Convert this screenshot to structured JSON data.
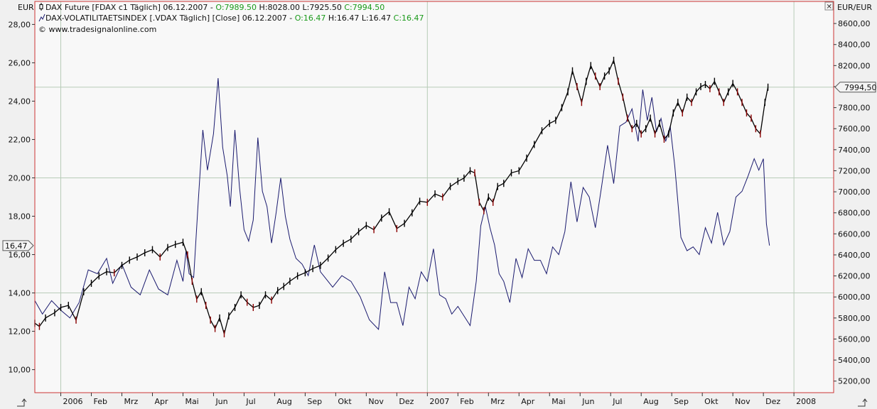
{
  "header": {
    "left_currency": "EUR",
    "right_currency": "EUR/EUR",
    "close_glyph": "✕"
  },
  "legend": {
    "line1": {
      "icon": "candlestick-icon",
      "name": "DAX Future [FDAX c1  Täglich] 06.12.2007 - ",
      "o_label": "O:",
      "o_value": "7989.50",
      "h_text": " H:8028.00 L:7925.50 ",
      "c_label": "C:",
      "c_value": "7994.50"
    },
    "line2": {
      "icon": "line-chart-icon",
      "name": "DAX-VOLATILITAETSINDEX [.VDAX  Täglich] [Close] 06.12.2007 - ",
      "o_label": "O:",
      "o_value": "16.47",
      "h_text": " H:16.47 L:16.47 ",
      "c_label": "C:",
      "c_value": "16.47"
    },
    "copyright": "© www.tradesignalonline.com"
  },
  "chart_data": {
    "type": "line",
    "x_tick_labels": [
      "2006",
      "Feb",
      "Mrz",
      "Apr",
      "Mai",
      "Jun",
      "Jul",
      "Aug",
      "Sep",
      "Okt",
      "Nov",
      "Dez",
      "2007",
      "Feb",
      "Mrz",
      "Apr",
      "Mai",
      "Jun",
      "Jul",
      "Aug",
      "Sep",
      "Okt",
      "Nov",
      "Dez",
      "2008"
    ],
    "x_tick_months": [
      0,
      1,
      2,
      3,
      4,
      5,
      6,
      7,
      8,
      9,
      10,
      11,
      12,
      13,
      14,
      15,
      16,
      17,
      18,
      19,
      20,
      21,
      22,
      23,
      24
    ],
    "x_range_months": [
      -0.85,
      25.3
    ],
    "left_axis": {
      "ticks": [
        "10,00",
        "12,00",
        "14,00",
        "16,00",
        "18,00",
        "20,00",
        "22,00",
        "24,00",
        "26,00",
        "28,00"
      ],
      "tick_values": [
        10,
        12,
        14,
        16,
        18,
        20,
        22,
        24,
        26,
        28
      ],
      "range": [
        8.8,
        29.2
      ],
      "current_value_label": "16,47",
      "current_value": 16.47
    },
    "right_axis": {
      "ticks": [
        "5200,00",
        "5400,00",
        "5600,00",
        "5800,00",
        "6000,00",
        "6200,00",
        "6400,00",
        "6600,00",
        "6800,00",
        "7000,00",
        "7200,00",
        "7400,00",
        "7600,00",
        "7800,00",
        "8000,00",
        "8200,00",
        "8400,00",
        "8600,00"
      ],
      "tick_values": [
        5200,
        5400,
        5600,
        5800,
        6000,
        6200,
        6400,
        6600,
        6800,
        7000,
        7200,
        7400,
        7600,
        7800,
        8000,
        8200,
        8400,
        8600
      ],
      "range": [
        5090,
        8810
      ],
      "current_value_label": "7994,50",
      "current_value": 7994.5
    },
    "grid": {
      "vertical_months": [
        0,
        12,
        24
      ],
      "horizontal_left_values": [
        14,
        20
      ],
      "horizontal_right_values": [
        7994.5
      ]
    },
    "colors": {
      "vdax_line": "#1a1a6e",
      "dax_up": "#000000",
      "dax_down": "#8b0000",
      "grid": "#b8ccb8",
      "frame": "#cc3333",
      "plot_bg": "#f8f8f8"
    },
    "series": [
      {
        "name": "DAX-VOLATILITAETSINDEX",
        "axis": "left",
        "style": "line",
        "x": [
          -0.85,
          -0.6,
          -0.3,
          0,
          0.3,
          0.6,
          0.9,
          1.2,
          1.5,
          1.7,
          2.0,
          2.3,
          2.6,
          2.9,
          3.2,
          3.5,
          3.8,
          4.0,
          4.1,
          4.2,
          4.35,
          4.5,
          4.65,
          4.8,
          5.0,
          5.15,
          5.3,
          5.45,
          5.55,
          5.7,
          5.85,
          6.0,
          6.15,
          6.3,
          6.45,
          6.6,
          6.75,
          6.9,
          7.05,
          7.2,
          7.35,
          7.5,
          7.7,
          7.9,
          8.1,
          8.3,
          8.5,
          8.7,
          8.9,
          9.2,
          9.5,
          9.8,
          10.1,
          10.4,
          10.6,
          10.8,
          11.0,
          11.2,
          11.4,
          11.6,
          11.8,
          12.0,
          12.2,
          12.4,
          12.6,
          12.8,
          13.0,
          13.2,
          13.4,
          13.6,
          13.75,
          13.9,
          14.05,
          14.2,
          14.35,
          14.5,
          14.7,
          14.9,
          15.1,
          15.3,
          15.5,
          15.7,
          15.9,
          16.1,
          16.3,
          16.5,
          16.7,
          16.9,
          17.1,
          17.3,
          17.5,
          17.7,
          17.9,
          18.1,
          18.3,
          18.5,
          18.7,
          18.9,
          19.05,
          19.2,
          19.35,
          19.5,
          19.65,
          19.8,
          19.95,
          20.1,
          20.3,
          20.5,
          20.7,
          20.9,
          21.1,
          21.3,
          21.5,
          21.7,
          21.9,
          22.1,
          22.3,
          22.5,
          22.7,
          22.85,
          23.0,
          23.1,
          23.2
        ],
        "y": [
          13.6,
          12.9,
          13.6,
          13.1,
          12.7,
          13.5,
          15.2,
          15.0,
          15.8,
          14.5,
          15.5,
          14.3,
          13.9,
          15.2,
          14.2,
          13.9,
          15.7,
          14.6,
          16.2,
          15.0,
          14.8,
          18.8,
          22.5,
          20.4,
          22.3,
          25.2,
          21.6,
          20.1,
          18.5,
          22.5,
          19.5,
          17.3,
          16.7,
          17.8,
          22.1,
          19.3,
          18.5,
          16.6,
          18.2,
          20.0,
          18.0,
          16.8,
          15.8,
          15.5,
          14.9,
          16.5,
          15.1,
          14.7,
          14.3,
          14.9,
          14.6,
          13.8,
          12.6,
          12.1,
          15.1,
          13.5,
          13.5,
          12.3,
          14.3,
          13.7,
          15.1,
          14.6,
          16.3,
          13.9,
          13.7,
          12.9,
          13.3,
          12.8,
          12.3,
          14.6,
          17.5,
          18.5,
          17.4,
          16.5,
          15.0,
          14.6,
          13.5,
          15.8,
          14.8,
          16.3,
          15.7,
          15.7,
          15.0,
          16.4,
          16.0,
          17.2,
          19.8,
          17.7,
          19.5,
          19.0,
          17.4,
          19.5,
          21.7,
          19.7,
          22.7,
          22.9,
          23.6,
          21.9,
          24.6,
          23.0,
          24.2,
          22.4,
          23.1,
          21.9,
          22.7,
          20.6,
          16.9,
          16.2,
          16.4,
          16.0,
          17.4,
          16.6,
          18.2,
          16.5,
          17.2,
          19.0,
          19.3,
          20.1,
          21.0,
          20.4,
          21.0,
          17.6,
          16.47
        ]
      },
      {
        "name": "DAX Future",
        "axis": "right",
        "style": "ohlc",
        "x": [
          -0.85,
          -0.7,
          -0.5,
          -0.2,
          0.0,
          0.25,
          0.5,
          0.75,
          1.0,
          1.25,
          1.5,
          1.75,
          2.0,
          2.25,
          2.5,
          2.75,
          3.0,
          3.25,
          3.5,
          3.75,
          4.0,
          4.15,
          4.3,
          4.45,
          4.6,
          4.75,
          4.9,
          5.05,
          5.2,
          5.35,
          5.5,
          5.7,
          5.9,
          6.1,
          6.3,
          6.5,
          6.7,
          6.9,
          7.1,
          7.3,
          7.5,
          7.75,
          8.0,
          8.25,
          8.5,
          8.75,
          9.0,
          9.25,
          9.5,
          9.75,
          10.0,
          10.25,
          10.5,
          10.75,
          11.0,
          11.25,
          11.5,
          11.75,
          12.0,
          12.25,
          12.5,
          12.75,
          13.0,
          13.2,
          13.4,
          13.55,
          13.7,
          13.85,
          14.0,
          14.15,
          14.3,
          14.5,
          14.75,
          15.0,
          15.25,
          15.5,
          15.75,
          16.0,
          16.2,
          16.4,
          16.6,
          16.75,
          16.9,
          17.05,
          17.2,
          17.35,
          17.5,
          17.65,
          17.8,
          17.95,
          18.1,
          18.25,
          18.4,
          18.55,
          18.7,
          18.85,
          19.0,
          19.15,
          19.3,
          19.45,
          19.6,
          19.75,
          19.9,
          20.05,
          20.2,
          20.35,
          20.5,
          20.65,
          20.8,
          20.95,
          21.1,
          21.25,
          21.4,
          21.55,
          21.7,
          21.85,
          22.0,
          22.15,
          22.3,
          22.45,
          22.6,
          22.75,
          22.9,
          23.05,
          23.15
        ],
        "y": [
          5750,
          5720,
          5800,
          5850,
          5900,
          5920,
          5780,
          6050,
          6130,
          6200,
          6240,
          6230,
          6300,
          6350,
          6380,
          6420,
          6450,
          6380,
          6470,
          6500,
          6520,
          6400,
          6150,
          5980,
          6050,
          5920,
          5780,
          5700,
          5800,
          5650,
          5820,
          5900,
          6020,
          5950,
          5900,
          5920,
          6020,
          5970,
          6060,
          6100,
          6150,
          6200,
          6230,
          6270,
          6300,
          6370,
          6450,
          6510,
          6550,
          6620,
          6680,
          6640,
          6750,
          6810,
          6650,
          6700,
          6800,
          6910,
          6900,
          6980,
          6950,
          7050,
          7100,
          7130,
          7200,
          7180,
          6900,
          6820,
          6950,
          6900,
          7050,
          7080,
          7180,
          7200,
          7320,
          7450,
          7580,
          7650,
          7680,
          7800,
          7950,
          8150,
          8000,
          7850,
          8050,
          8200,
          8100,
          8000,
          8100,
          8150,
          8250,
          8050,
          7900,
          7700,
          7600,
          7650,
          7550,
          7600,
          7700,
          7550,
          7650,
          7500,
          7550,
          7750,
          7850,
          7750,
          7900,
          7850,
          7950,
          8000,
          8020,
          7980,
          8050,
          7950,
          7850,
          7950,
          8030,
          7950,
          7850,
          7750,
          7700,
          7600,
          7550,
          7850,
          7994.5
        ]
      }
    ]
  }
}
